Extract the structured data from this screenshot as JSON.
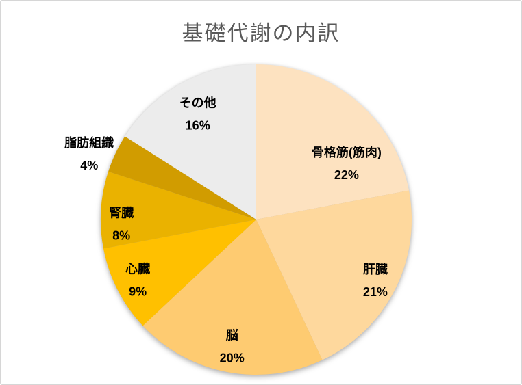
{
  "window": {
    "background": "#FFFFFF",
    "border_color": "#D6D6D6"
  },
  "chart_data": {
    "type": "pie",
    "title": "基礎代謝の内訳",
    "title_color": "#595959",
    "categories": [
      "骨格筋(筋肉)",
      "肝臓",
      "脳",
      "心臓",
      "腎臓",
      "脂肪組織",
      "その他"
    ],
    "values": [
      22,
      21,
      20,
      9,
      8,
      4,
      16
    ],
    "value_labels": [
      "22%",
      "21%",
      "20%",
      "9%",
      "8%",
      "4%",
      "16%"
    ],
    "unit": "%",
    "total": 100,
    "colors": [
      "#FDE2C0",
      "#FED89D",
      "#FECB71",
      "#FFC000",
      "#EAB200",
      "#D19C00",
      "#ECECEC"
    ],
    "label_text_color": "#000000",
    "start_angle_deg": 0,
    "direction": "clockwise",
    "legend": "none",
    "data_labels": "category name and percent, inside slices (脂肪組織 outside left)"
  }
}
